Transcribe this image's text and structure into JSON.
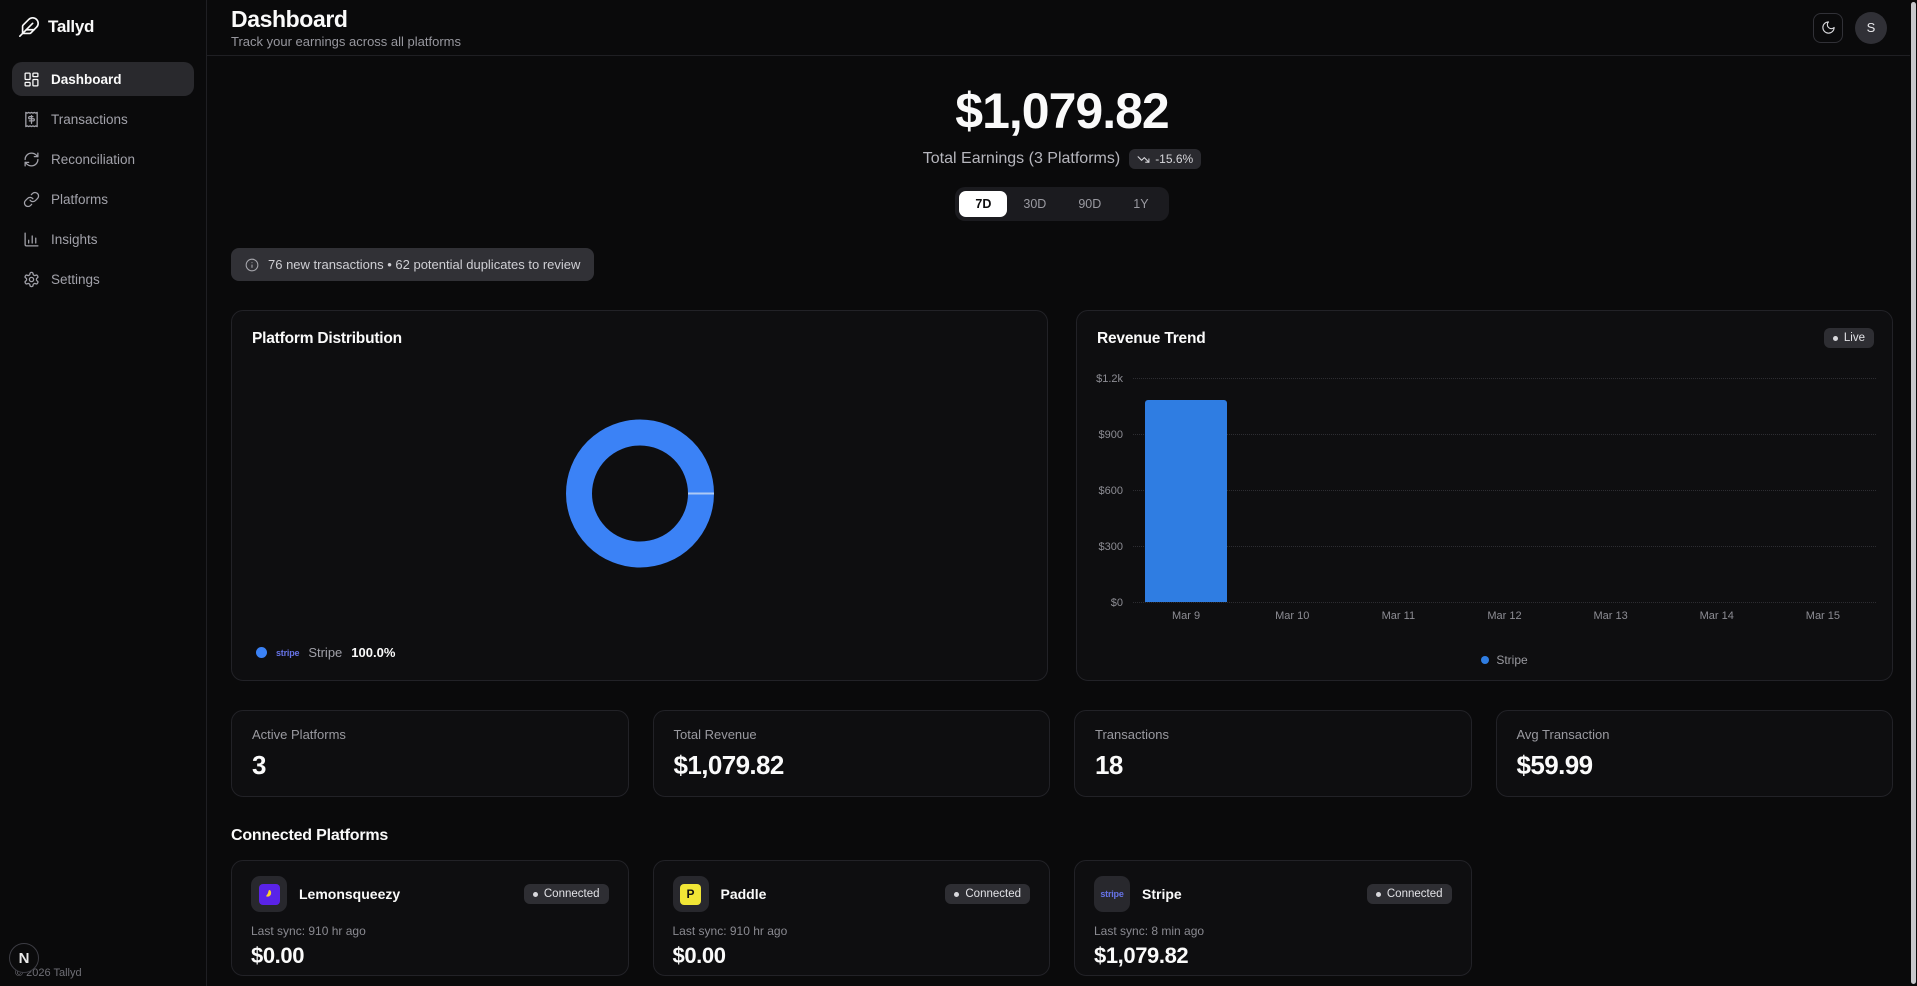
{
  "brand": {
    "name": "Tallyd",
    "copyright": "© 2026 Tallyd",
    "dev_badge": "N"
  },
  "sidebar": {
    "items": [
      {
        "label": "Dashboard",
        "active": true
      },
      {
        "label": "Transactions",
        "active": false
      },
      {
        "label": "Reconciliation",
        "active": false
      },
      {
        "label": "Platforms",
        "active": false
      },
      {
        "label": "Insights",
        "active": false
      },
      {
        "label": "Settings",
        "active": false
      }
    ]
  },
  "header": {
    "title": "Dashboard",
    "subtitle": "Track your earnings across all platforms",
    "avatar_initial": "S"
  },
  "hero": {
    "total": "$1,079.82",
    "caption": "Total Earnings (3 Platforms)",
    "change": "-15.6%",
    "ranges": [
      "7D",
      "30D",
      "90D",
      "1Y"
    ],
    "active_range": "7D"
  },
  "banner": {
    "text": "76 new transactions • 62 potential duplicates to review"
  },
  "distribution": {
    "title": "Platform Distribution",
    "legend": {
      "label": "Stripe",
      "value": "100.0%"
    }
  },
  "revenue": {
    "title": "Revenue Trend",
    "badge": "Live",
    "legend": "Stripe"
  },
  "stats": [
    {
      "label": "Active Platforms",
      "value": "3"
    },
    {
      "label": "Total Revenue",
      "value": "$1,079.82"
    },
    {
      "label": "Transactions",
      "value": "18"
    },
    {
      "label": "Avg Transaction",
      "value": "$59.99"
    }
  ],
  "platforms": {
    "heading": "Connected Platforms",
    "cards": [
      {
        "name": "Lemonsqueezy",
        "badge": "Connected",
        "sync": "Last sync: 910 hr ago",
        "amount": "$0.00",
        "icon": "lemonsqueezy-icon"
      },
      {
        "name": "Paddle",
        "badge": "Connected",
        "sync": "Last sync: 910 hr ago",
        "amount": "$0.00",
        "icon": "paddle-icon"
      },
      {
        "name": "Stripe",
        "badge": "Connected",
        "sync": "Last sync: 8 min ago",
        "amount": "$1,079.82",
        "icon": "stripe-icon"
      }
    ]
  },
  "colors": {
    "donut": "#3b82f6",
    "bar": "#2f7de2",
    "stripe_wordmark": "#6673e6"
  },
  "chart_data": [
    {
      "type": "pie",
      "title": "Platform Distribution",
      "donut": true,
      "series": [
        {
          "name": "Stripe",
          "value": 100.0
        }
      ],
      "colors": [
        "#3b82f6"
      ],
      "legend_position": "bottom-left"
    },
    {
      "type": "bar",
      "title": "Revenue Trend",
      "categories": [
        "Mar 9",
        "Mar 10",
        "Mar 11",
        "Mar 12",
        "Mar 13",
        "Mar 14",
        "Mar 15"
      ],
      "series": [
        {
          "name": "Stripe",
          "values": [
            1079.82,
            0,
            0,
            0,
            0,
            0,
            0
          ]
        }
      ],
      "ylim": [
        0,
        1200
      ],
      "yticks": [
        {
          "value": 1200,
          "label": "$1.2k"
        },
        {
          "value": 900,
          "label": "$900"
        },
        {
          "value": 600,
          "label": "$600"
        },
        {
          "value": 300,
          "label": "$300"
        },
        {
          "value": 0,
          "label": "$0"
        }
      ],
      "bar_color": "#2f7de2",
      "grid": "dotted-horizontal",
      "legend_position": "bottom"
    }
  ]
}
